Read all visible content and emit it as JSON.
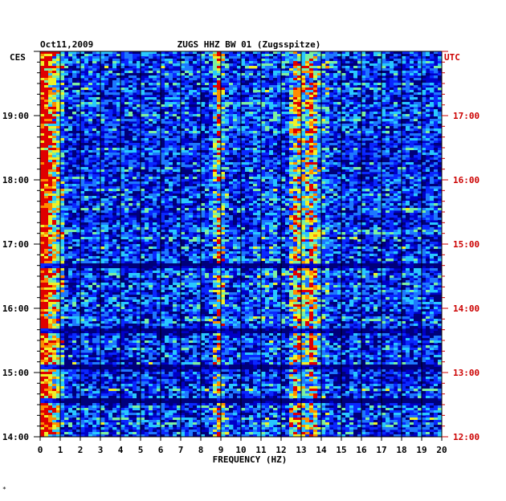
{
  "chart_data": {
    "type": "heatmap",
    "date": "Oct11,2009",
    "title": "ZUGS HHZ BW 01 (Zugsspitze)",
    "xlabel": "FREQUENCY (HZ)",
    "left_axis_label": "CES",
    "right_axis_label": "UTC",
    "xlim": [
      0,
      20
    ],
    "x_ticks": [
      "0",
      "1",
      "2",
      "3",
      "4",
      "5",
      "6",
      "7",
      "8",
      "9",
      "10",
      "11",
      "12",
      "13",
      "14",
      "15",
      "16",
      "17",
      "18",
      "19",
      "20"
    ],
    "left_ticks": [
      {
        "label": "19:00",
        "hours_from_top": 1
      },
      {
        "label": "18:00",
        "hours_from_top": 2
      },
      {
        "label": "17:00",
        "hours_from_top": 3
      },
      {
        "label": "16:00",
        "hours_from_top": 4
      },
      {
        "label": "15:00",
        "hours_from_top": 5
      },
      {
        "label": "14:00",
        "hours_from_top": 6
      }
    ],
    "right_ticks": [
      {
        "label": "17:00",
        "hours_from_top": 1
      },
      {
        "label": "16:00",
        "hours_from_top": 2
      },
      {
        "label": "15:00",
        "hours_from_top": 3
      },
      {
        "label": "14:00",
        "hours_from_top": 4
      },
      {
        "label": "13:00",
        "hours_from_top": 5
      },
      {
        "label": "12:00",
        "hours_from_top": 6
      }
    ],
    "grid": true,
    "colormap": [
      "#00007a",
      "#0000c8",
      "#0a28ff",
      "#1e78ff",
      "#28c8ff",
      "#7cf0a0",
      "#f0f028",
      "#ff8c00",
      "#e00000"
    ],
    "time_range_hours": 6.25,
    "strong_bands_hz": [
      0.3,
      8.9,
      12.8,
      13.5
    ],
    "quiet_time_lines_hours_from_top": [
      3.33,
      4.33,
      4.9,
      5.42
    ]
  }
}
